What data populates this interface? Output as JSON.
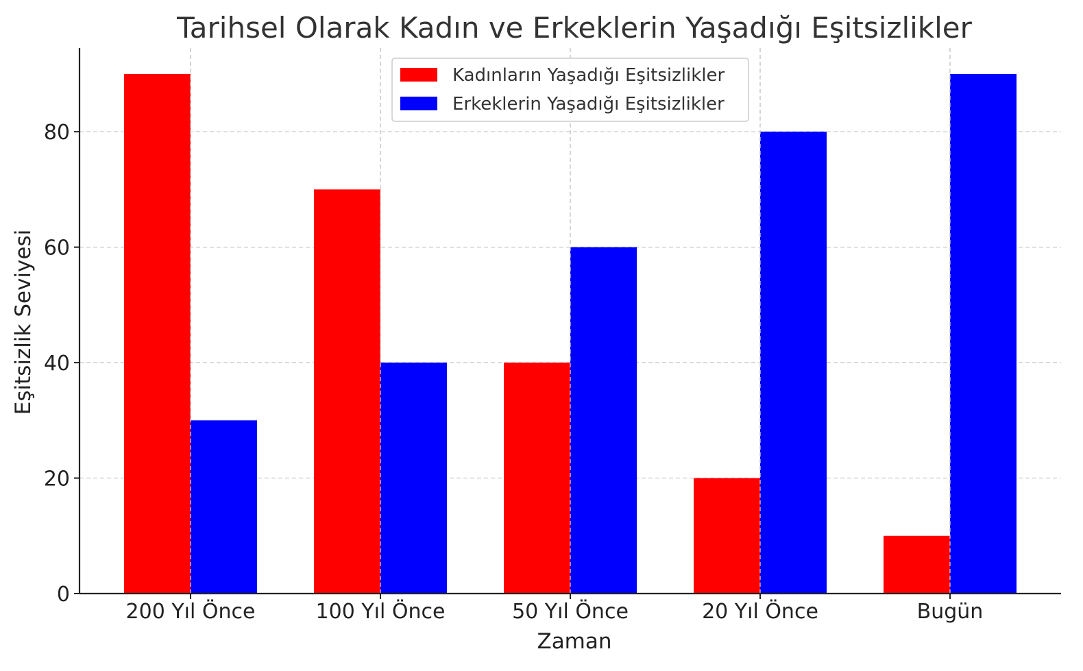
{
  "chart_data": {
    "type": "bar",
    "title": "Tarihsel Olarak Kadın ve Erkeklerin Yaşadığı Eşitsizlikler",
    "xlabel": "Zaman",
    "ylabel": "Eşitsizlik Seviyesi",
    "categories": [
      "200 Yıl Önce",
      "100 Yıl Önce",
      "50 Yıl Önce",
      "20 Yıl Önce",
      "Bugün"
    ],
    "series": [
      {
        "name": "Kadınların Yaşadığı Eşitsizlikler",
        "color": "#ff0000",
        "values": [
          90,
          70,
          40,
          20,
          10
        ]
      },
      {
        "name": "Erkeklerin Yaşadığı Eşitsizlikler",
        "color": "#0000ff",
        "values": [
          30,
          40,
          60,
          80,
          90
        ]
      }
    ],
    "ylim": [
      0,
      94.5
    ],
    "yticks": [
      0,
      20,
      40,
      60,
      80
    ],
    "grid": true,
    "legend_position": "top-center"
  }
}
